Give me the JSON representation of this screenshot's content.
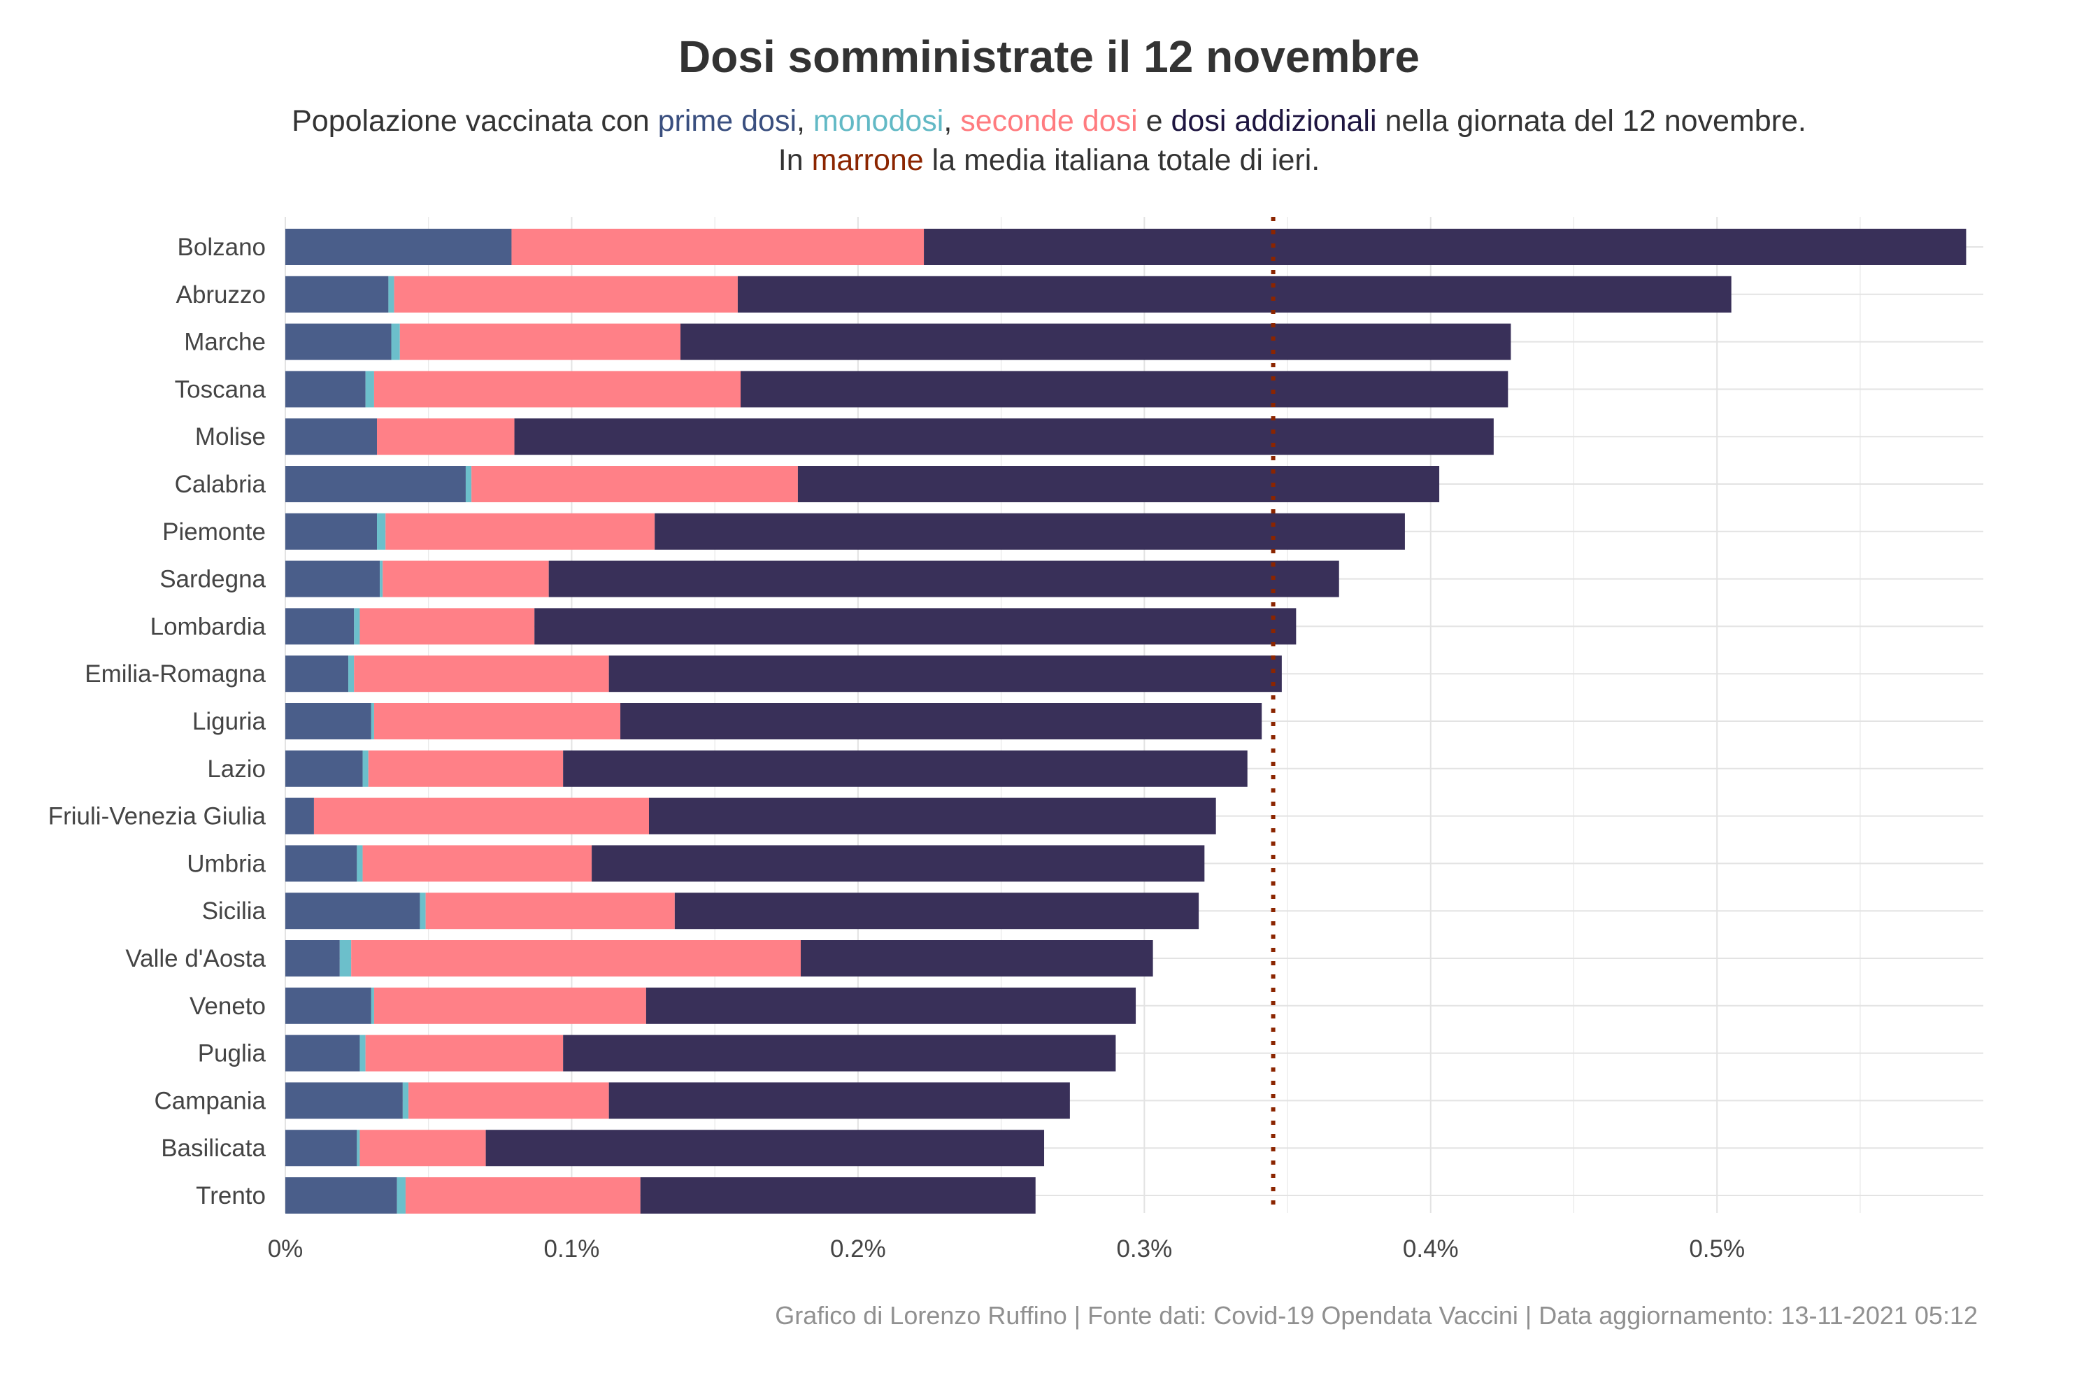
{
  "title": "Dosi somministrate il 12 novembre",
  "subtitle": {
    "line1": {
      "prefix": "Popolazione vaccinata con ",
      "prime": "prime dosi",
      "sep1": ", ",
      "mono": "monodosi",
      "sep2": ", ",
      "seconde": "seconde dosi",
      "sep3": " e ",
      "add": "dosi addizionali",
      "suffix": " nella giornata del 12 novembre."
    },
    "line2": {
      "prefix": "In ",
      "marrone": "marrone",
      "suffix": " la media italiana totale di ieri."
    }
  },
  "caption": "Grafico di Lorenzo Ruffino | Fonte dati: Covid-19 Opendata Vaccini | Data aggiornamento: 13-11-2021 05:12",
  "colors": {
    "prime": "#4A5E8A",
    "mono": "#6CBFCB",
    "seconde": "#FF8087",
    "addizionali": "#393059",
    "media": "#8B2500",
    "grid": "#E3E3E3",
    "text": "#444444"
  },
  "chart_data": {
    "type": "bar",
    "orientation": "horizontal",
    "stacked": true,
    "xlim": [
      0,
      0.593
    ],
    "x_ticks": [
      0,
      0.1,
      0.2,
      0.3,
      0.4,
      0.5
    ],
    "x_tick_labels": [
      "0%",
      "0.1%",
      "0.2%",
      "0.3%",
      "0.4%",
      "0.5%"
    ],
    "reference_line": {
      "value": 0.345,
      "style": "dotted"
    },
    "categories": [
      "Bolzano",
      "Abruzzo",
      "Marche",
      "Toscana",
      "Molise",
      "Calabria",
      "Piemonte",
      "Sardegna",
      "Lombardia",
      "Emilia-Romagna",
      "Liguria",
      "Lazio",
      "Friuli-Venezia Giulia",
      "Umbria",
      "Sicilia",
      "Valle d'Aosta",
      "Veneto",
      "Puglia",
      "Campania",
      "Basilicata",
      "Trento"
    ],
    "series": [
      {
        "key": "prime",
        "values": [
          0.079,
          0.036,
          0.037,
          0.028,
          0.032,
          0.063,
          0.032,
          0.033,
          0.024,
          0.022,
          0.03,
          0.027,
          0.01,
          0.025,
          0.047,
          0.019,
          0.03,
          0.026,
          0.041,
          0.025,
          0.039
        ]
      },
      {
        "key": "mono",
        "values": [
          0.0,
          0.002,
          0.003,
          0.003,
          0.0,
          0.002,
          0.003,
          0.001,
          0.002,
          0.002,
          0.001,
          0.002,
          0.0,
          0.002,
          0.002,
          0.004,
          0.001,
          0.002,
          0.002,
          0.001,
          0.003
        ]
      },
      {
        "key": "seconde",
        "values": [
          0.144,
          0.12,
          0.098,
          0.128,
          0.048,
          0.114,
          0.094,
          0.058,
          0.061,
          0.089,
          0.086,
          0.068,
          0.117,
          0.08,
          0.087,
          0.157,
          0.095,
          0.069,
          0.07,
          0.044,
          0.082
        ]
      },
      {
        "key": "addizionali",
        "values": [
          0.364,
          0.347,
          0.29,
          0.268,
          0.342,
          0.224,
          0.262,
          0.276,
          0.266,
          0.235,
          0.224,
          0.239,
          0.198,
          0.214,
          0.183,
          0.123,
          0.171,
          0.193,
          0.161,
          0.195,
          0.138
        ]
      }
    ]
  }
}
